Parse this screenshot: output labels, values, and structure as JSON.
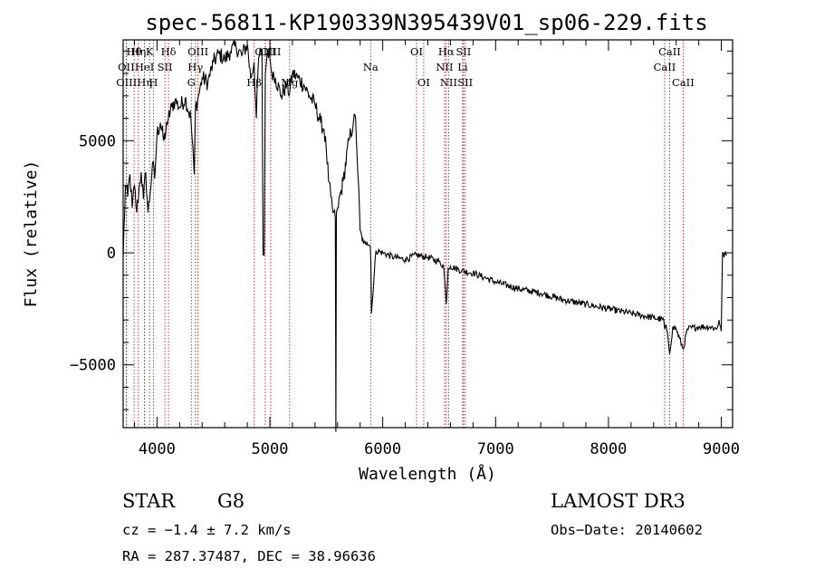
{
  "chart_data": {
    "type": "line",
    "title": "spec-56811-KP190339N395439V01_sp06-229.fits",
    "xlabel": "Wavelength (Å)",
    "ylabel": "Flux (relative)",
    "xlim": [
      3700,
      9100
    ],
    "ylim": [
      -7800,
      9500
    ],
    "xticks": [
      4000,
      5000,
      6000,
      7000,
      8000,
      9000
    ],
    "xtick_labels": [
      "4000",
      "5000",
      "6000",
      "7000",
      "8000",
      "9000"
    ],
    "yticks": [
      -5000,
      0,
      5000
    ],
    "ytick_labels": [
      "−5000",
      "0",
      "5000"
    ],
    "series": [
      {
        "name": "spectrum",
        "x": [
          3700,
          3720,
          3740,
          3760,
          3780,
          3800,
          3820,
          3840,
          3860,
          3880,
          3900,
          3920,
          3940,
          3960,
          3980,
          4000,
          4030,
          4060,
          4090,
          4100,
          4130,
          4160,
          4200,
          4250,
          4300,
          4330,
          4340,
          4360,
          4400,
          4450,
          4500,
          4550,
          4600,
          4650,
          4700,
          4750,
          4800,
          4830,
          4860,
          4880,
          4900,
          4930,
          4940,
          4950,
          4960,
          4980,
          5000,
          5010,
          5050,
          5100,
          5150,
          5175,
          5200,
          5250,
          5300,
          5350,
          5400,
          5450,
          5480,
          5500,
          5520,
          5540,
          5560,
          5580,
          5585,
          5590,
          5600,
          5650,
          5700,
          5740,
          5760,
          5780,
          5800,
          5830,
          5860,
          5890,
          5895,
          5900,
          5940,
          6000,
          6100,
          6200,
          6300,
          6400,
          6500,
          6540,
          6563,
          6580,
          6600,
          6700,
          6800,
          6900,
          7000,
          7200,
          7400,
          7600,
          7800,
          8000,
          8200,
          8400,
          8490,
          8498,
          8510,
          8542,
          8570,
          8600,
          8662,
          8700,
          8800,
          8900,
          8960,
          8980,
          9000,
          9010,
          9050
        ],
        "y": [
          -200,
          3000,
          2500,
          3500,
          2000,
          3000,
          1800,
          2800,
          3600,
          2400,
          3600,
          1800,
          2700,
          4000,
          3300,
          5300,
          5800,
          5000,
          5700,
          6000,
          6500,
          6800,
          6500,
          6900,
          6000,
          3500,
          6500,
          6800,
          7800,
          7600,
          8500,
          8900,
          8600,
          9000,
          9200,
          8800,
          9300,
          7800,
          8500,
          6000,
          8700,
          9000,
          -100,
          -100,
          8000,
          9100,
          8700,
          8200,
          7800,
          7000,
          7500,
          7100,
          8000,
          7800,
          7500,
          7000,
          6600,
          5800,
          5500,
          4600,
          3200,
          2500,
          1800,
          1500,
          -8000,
          1800,
          2000,
          3200,
          5000,
          5800,
          6000,
          3500,
          1000,
          400,
          500,
          300,
          -500,
          -2700,
          100,
          0,
          -200,
          -300,
          -100,
          -200,
          -400,
          -600,
          -2300,
          -700,
          -600,
          -800,
          -900,
          -1100,
          -1300,
          -1600,
          -1800,
          -2100,
          -2300,
          -2500,
          -2700,
          -2900,
          -3000,
          -3400,
          -3200,
          -4500,
          -3300,
          -3400,
          -4300,
          -3400,
          -3300,
          -3300,
          -3400,
          -3000,
          -3500,
          -100,
          -100
        ]
      }
    ],
    "line_markers": [
      {
        "label": "Hθ",
        "x": 3797,
        "row": 1
      },
      {
        "label": "OII",
        "x": 3727,
        "row": 2
      },
      {
        "label": "OIII",
        "x": 3730,
        "row": 3
      },
      {
        "label": "Hη",
        "x": 3835,
        "row": 1
      },
      {
        "label": "K",
        "x": 3934,
        "row": 1
      },
      {
        "label": "HeI",
        "x": 3889,
        "row": 2
      },
      {
        "label": "Hη",
        "x": 3890,
        "row": 3
      },
      {
        "label": "Hδ",
        "x": 4102,
        "row": 1
      },
      {
        "label": "SII",
        "x": 4070,
        "row": 2
      },
      {
        "label": "H",
        "x": 3968,
        "row": 3
      },
      {
        "label": "OIII",
        "x": 4363,
        "row": 1
      },
      {
        "label": "Hγ",
        "x": 4340,
        "row": 2
      },
      {
        "label": "G",
        "x": 4304,
        "row": 3
      },
      {
        "label": "Hβ",
        "x": 4861,
        "row": 3
      },
      {
        "label": "OIII",
        "x": 4959,
        "row": 1
      },
      {
        "label": "OIII",
        "x": 5007,
        "row": 1
      },
      {
        "label": "Mg",
        "x": 5175,
        "row": 3
      },
      {
        "label": "Na",
        "x": 5893,
        "row": 2
      },
      {
        "label": "OI",
        "x": 6300,
        "row": 1
      },
      {
        "label": "OI",
        "x": 6363,
        "row": 3
      },
      {
        "label": "Hα",
        "x": 6563,
        "row": 1
      },
      {
        "label": "SII",
        "x": 6716,
        "row": 1
      },
      {
        "label": "NII",
        "x": 6548,
        "row": 2
      },
      {
        "label": "Li",
        "x": 6708,
        "row": 2
      },
      {
        "label": "NII",
        "x": 6584,
        "row": 3
      },
      {
        "label": "SII",
        "x": 6731,
        "row": 3
      },
      {
        "label": "CaII",
        "x": 8542,
        "row": 1
      },
      {
        "label": "CaII",
        "x": 8498,
        "row": 2
      },
      {
        "label": "CaII",
        "x": 8662,
        "row": 3
      }
    ],
    "annotations": {
      "object_class": "STAR",
      "subclass": "G8",
      "survey": "LAMOST DR3",
      "redshift": "cz = −1.4 ± 7.2 km/s",
      "obs_date": "Obs−Date: 20140602",
      "coords": "RA = 287.37487, DEC =  38.96636"
    },
    "colors": {
      "line": "#000000",
      "marker": "#b22222"
    }
  }
}
